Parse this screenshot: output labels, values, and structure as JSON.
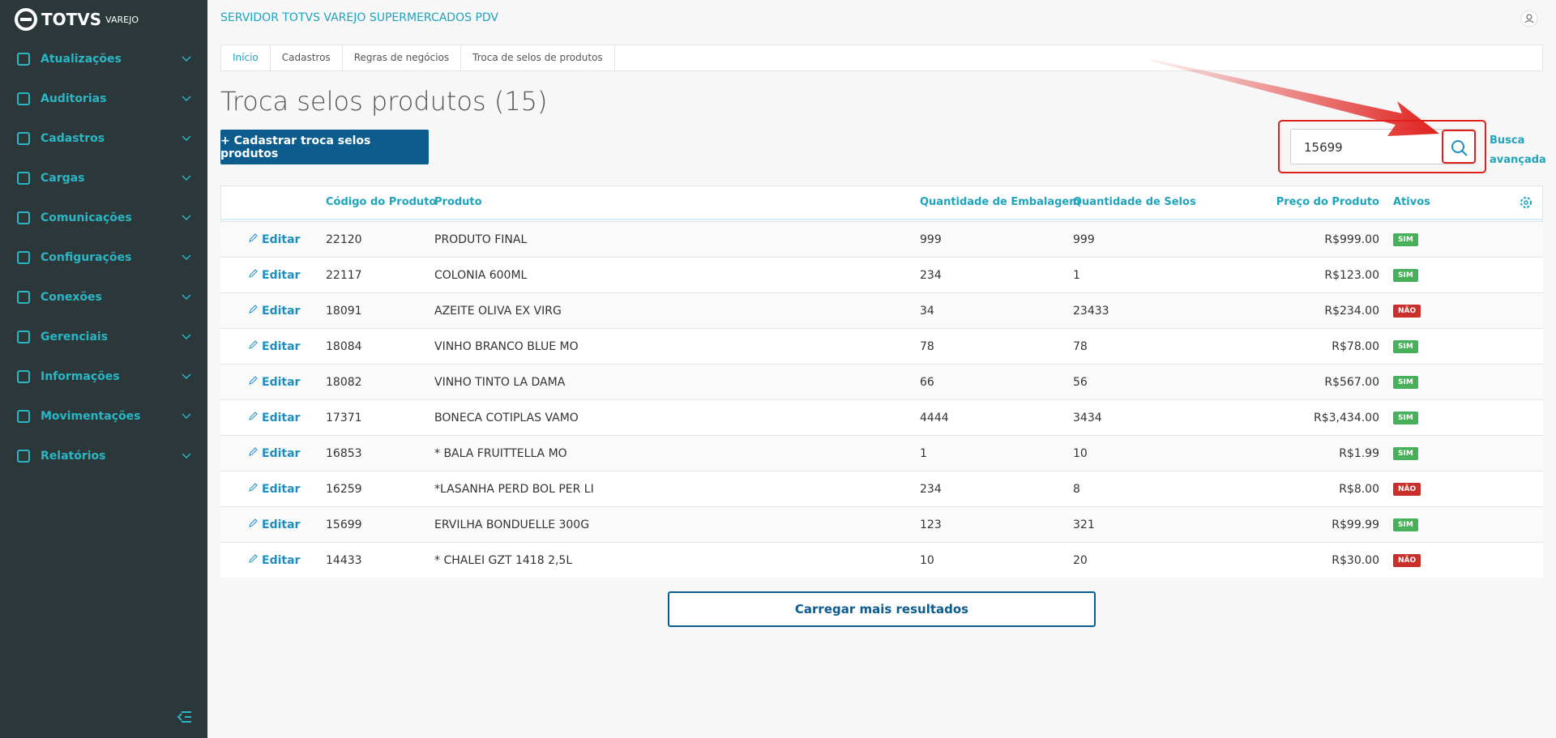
{
  "brand": {
    "name": "TOTVS",
    "sub": "VAREJO"
  },
  "server": "SERVIDOR TOTVS VAREJO SUPERMERCADOS PDV",
  "menu": [
    "Atualizações",
    "Auditorias",
    "Cadastros",
    "Cargas",
    "Comunicações",
    "Configurações",
    "Conexões",
    "Gerenciais",
    "Informações",
    "Movimentações",
    "Relatórios"
  ],
  "breadcrumb": [
    "Início",
    "Cadastros",
    "Regras de negócios",
    "Troca de selos de produtos"
  ],
  "title": "Troca selos produtos (15)",
  "create_button": "+ Cadastrar troca selos produtos",
  "search": {
    "value": "15699",
    "advanced": "Busca avançada"
  },
  "table": {
    "columns": [
      "Código do Produto",
      "Produto",
      "Quantidade de Embalagem",
      "Quantidade de Selos",
      "Preço do Produto",
      "Ativos"
    ],
    "edit": "Editar",
    "rows": [
      [
        "22120",
        "PRODUTO FINAL",
        "999",
        "999",
        "R$999.00",
        "SIM"
      ],
      [
        "22117",
        "COLONIA 600ML",
        "234",
        "1",
        "R$123.00",
        "SIM"
      ],
      [
        "18091",
        "AZEITE OLIVA EX VIRG",
        "34",
        "23433",
        "R$234.00",
        "NÃO"
      ],
      [
        "18084",
        "VINHO BRANCO BLUE MO",
        "78",
        "78",
        "R$78.00",
        "SIM"
      ],
      [
        "18082",
        "VINHO TINTO LA DAMA",
        "66",
        "56",
        "R$567.00",
        "SIM"
      ],
      [
        "17371",
        "BONECA COTIPLAS VAMO",
        "4444",
        "3434",
        "R$3,434.00",
        "SIM"
      ],
      [
        "16853",
        "* BALA FRUITTELLA MO",
        "1",
        "10",
        "R$1.99",
        "SIM"
      ],
      [
        "16259",
        "*LASANHA PERD BOL PER LI",
        "234",
        "8",
        "R$8.00",
        "NÃO"
      ],
      [
        "15699",
        "ERVILHA BONDUELLE 300G",
        "123",
        "321",
        "R$99.99",
        "SIM"
      ],
      [
        "14433",
        "* CHALEI GZT 1418 2,5L",
        "10",
        "20",
        "R$30.00",
        "NÃO"
      ]
    ]
  },
  "load_more": "Carregar mais resultados"
}
